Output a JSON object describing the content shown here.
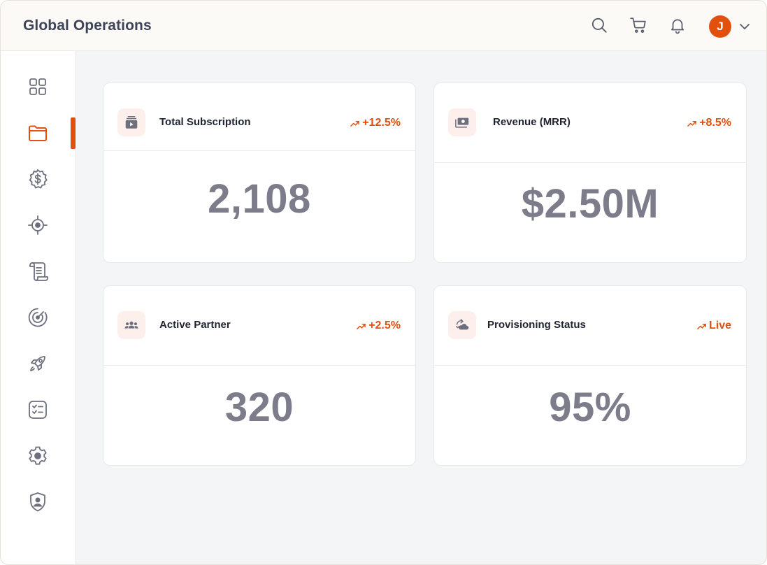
{
  "header": {
    "title": "Global Operations",
    "avatar_initial": "J",
    "icons": [
      "search-icon",
      "cart-icon",
      "bell-icon",
      "chevron-down-icon"
    ]
  },
  "sidebar": {
    "items": [
      {
        "name": "dashboard-grid-icon",
        "active": false
      },
      {
        "name": "folder-icon",
        "active": true
      },
      {
        "name": "dollar-badge-icon",
        "active": false
      },
      {
        "name": "target-icon",
        "active": false
      },
      {
        "name": "scroll-icon",
        "active": false
      },
      {
        "name": "radar-icon",
        "active": false
      },
      {
        "name": "rocket-icon",
        "active": false
      },
      {
        "name": "checklist-icon",
        "active": false
      },
      {
        "name": "settings-gear-icon",
        "active": false
      },
      {
        "name": "shield-user-icon",
        "active": false
      }
    ]
  },
  "cards": [
    {
      "title": "Total Subscription",
      "trend": "+12.5%",
      "value": "2,108",
      "icon": "subscription-icon"
    },
    {
      "title": "Revenue (MRR)",
      "trend": "+8.5%",
      "value": "$2.50M",
      "icon": "money-icon"
    },
    {
      "title": "Active Partner",
      "trend": "+2.5%",
      "value": "320",
      "icon": "people-icon"
    },
    {
      "title": "Provisioning Status",
      "trend": "Live",
      "value": "95%",
      "icon": "cloud-sync-icon"
    }
  ],
  "colors": {
    "accent": "#e2500e",
    "value_text": "#7d7c8a",
    "icon_gray": "#6e6f7d",
    "icon_bg": "#fdf0ec"
  }
}
